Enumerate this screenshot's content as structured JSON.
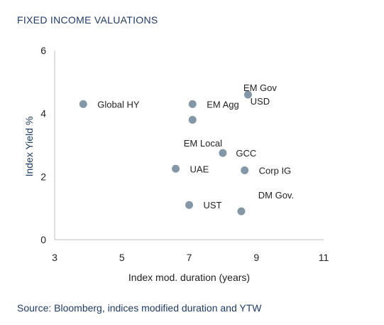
{
  "title": "FIXED INCOME VALUATIONS",
  "source": "Source: Bloomberg, indices modified duration and YTW",
  "colors": {
    "point": "#8497a6",
    "axis": "#bfbfbf",
    "title": "#1f3b64"
  },
  "chart_data": {
    "type": "scatter",
    "xlabel": "Index mod. duration (years)",
    "ylabel": "Index Yield %",
    "xlim": [
      3,
      11
    ],
    "ylim": [
      0,
      6
    ],
    "xticks": [
      "3",
      "5",
      "7",
      "9",
      "11"
    ],
    "yticks": [
      "0",
      "2",
      "4",
      "6"
    ],
    "grid": false,
    "points": [
      {
        "label": "Global HY",
        "x": 3.85,
        "y": 4.3
      },
      {
        "label": "EM Agg",
        "x": 7.1,
        "y": 4.3
      },
      {
        "label": "",
        "x": 7.1,
        "y": 3.8
      },
      {
        "label": "EM Gov\nUSD",
        "x": 8.75,
        "y": 4.6
      },
      {
        "label": "EM Local",
        "x": 8.0,
        "y": 2.75
      },
      {
        "label": "GCC",
        "x": 8.0,
        "y": 2.75
      },
      {
        "label": "UAE",
        "x": 6.6,
        "y": 2.25
      },
      {
        "label": "Corp IG",
        "x": 8.65,
        "y": 2.2
      },
      {
        "label": "UST",
        "x": 7.0,
        "y": 1.1
      },
      {
        "label": "DM Gov.",
        "x": 8.55,
        "y": 0.9
      }
    ]
  }
}
